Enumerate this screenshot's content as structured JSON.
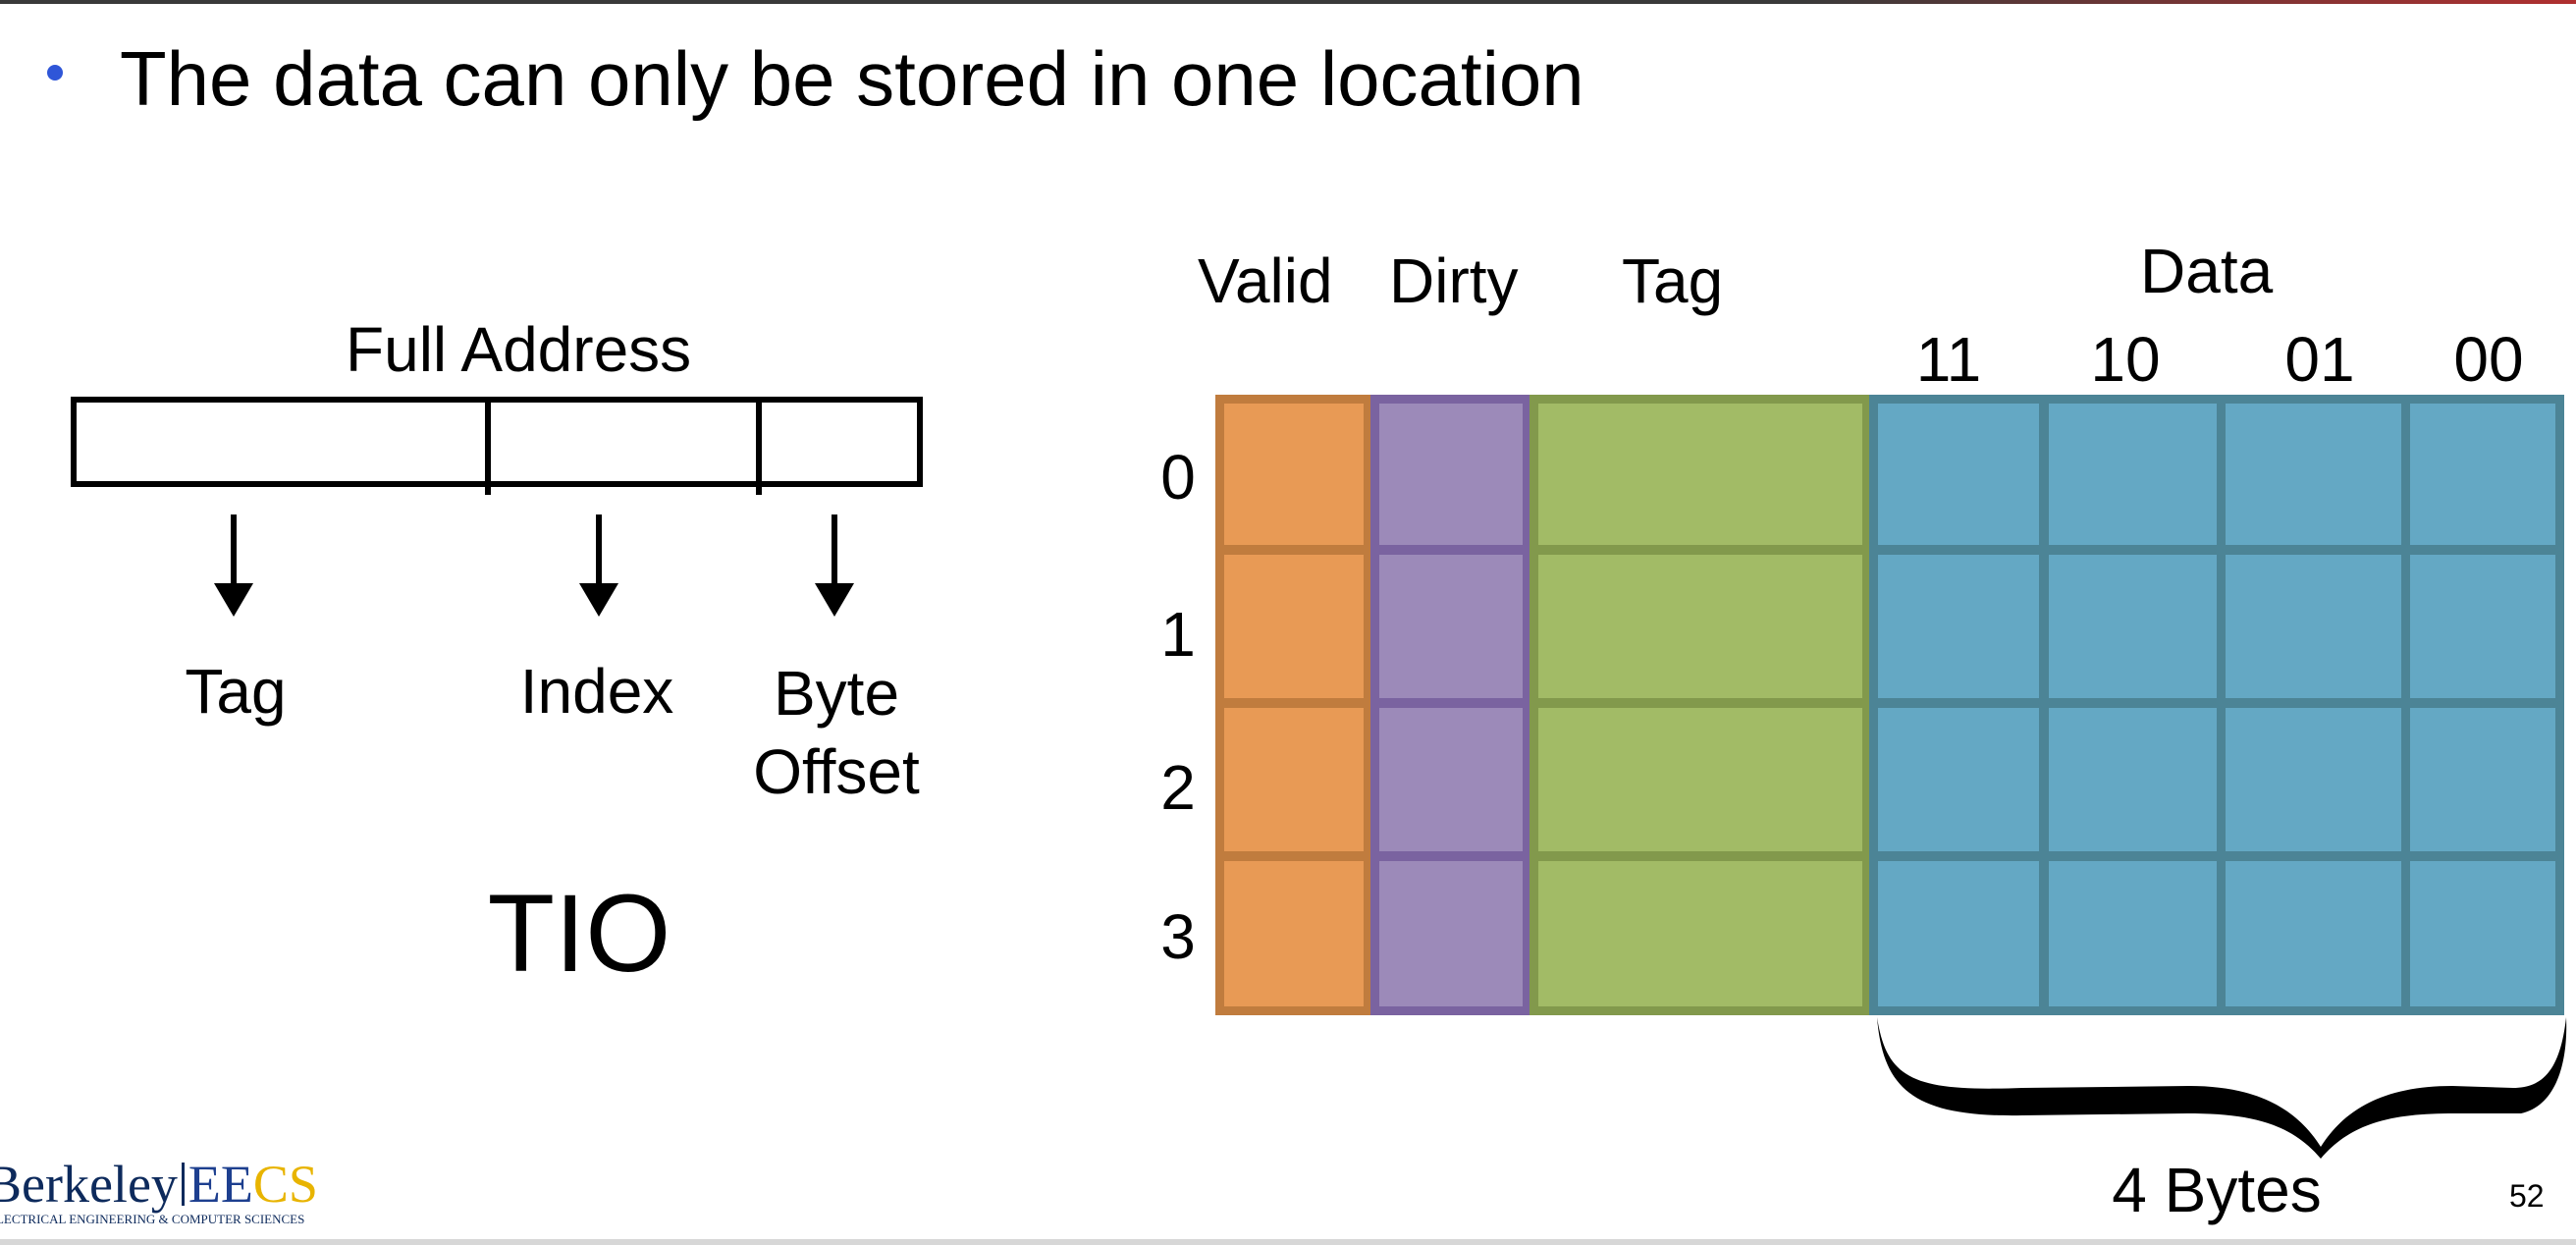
{
  "slide": {
    "bullet": "The data can only be stored in one location",
    "page_number": "52"
  },
  "address": {
    "title": "Full Address",
    "fields": [
      {
        "label": "Tag"
      },
      {
        "label": "Index"
      },
      {
        "label_line1": "Byte",
        "label_line2": "Offset"
      }
    ],
    "acronym": "TIO"
  },
  "cache": {
    "columns": {
      "valid": "Valid",
      "dirty": "Dirty",
      "tag": "Tag",
      "data": "Data"
    },
    "byte_labels": [
      "11",
      "10",
      "01",
      "00"
    ],
    "row_labels": [
      "0",
      "1",
      "2",
      "3"
    ],
    "brace_label": "4 Bytes",
    "colors": {
      "valid": "#e89a55",
      "dirty": "#9c8ab9",
      "tag": "#a2bb66",
      "data": "#64a8c4"
    }
  },
  "logo": {
    "berkeley": "Berkeley",
    "ee": "EE",
    "cs": "CS",
    "subtitle": "ELECTRICAL ENGINEERING & COMPUTER SCIENCES"
  }
}
